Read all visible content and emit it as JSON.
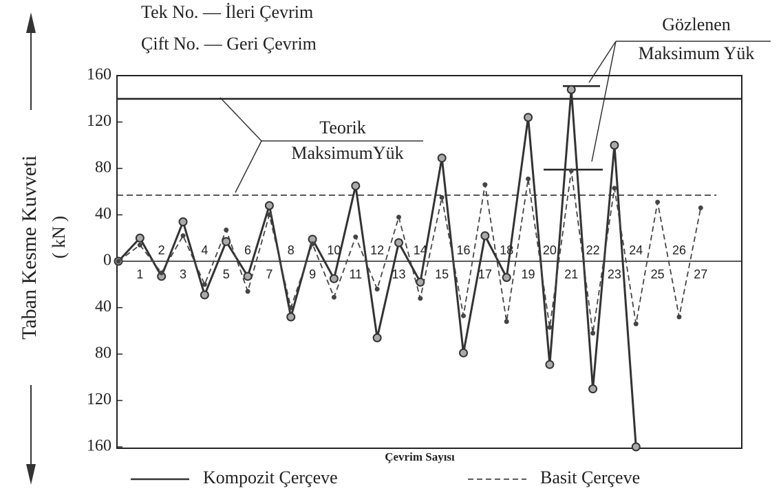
{
  "chart_data": {
    "type": "line",
    "legend_notes": [
      "Tek No. — İleri Çevrim",
      "Çift No. — Geri Çevrim"
    ],
    "xlabel": "Çevrim Sayısı",
    "ylabel": "Taban Kesme Kuvveti",
    "yunit": "( kN )",
    "x": [
      0,
      1,
      2,
      3,
      4,
      5,
      6,
      7,
      8,
      9,
      10,
      11,
      12,
      13,
      14,
      15,
      16,
      17,
      18,
      19,
      20,
      21,
      22,
      23,
      24,
      25,
      26,
      27
    ],
    "xlim": [
      0,
      29
    ],
    "xticks": [
      1,
      2,
      3,
      4,
      5,
      6,
      7,
      8,
      9,
      10,
      11,
      12,
      13,
      14,
      15,
      16,
      17,
      18,
      19,
      20,
      21,
      22,
      23,
      24,
      25,
      26,
      27
    ],
    "ylim": [
      -160,
      160
    ],
    "yticks": [
      {
        "value": 160,
        "label": "160"
      },
      {
        "value": 120,
        "label": "120"
      },
      {
        "value": 80,
        "label": "80"
      },
      {
        "value": 40,
        "label": "40"
      },
      0,
      {
        "value": -40,
        "label": "40"
      },
      {
        "value": -80,
        "label": "80"
      },
      {
        "value": -120,
        "label": "120"
      },
      {
        "value": -160,
        "label": "160"
      }
    ],
    "series": [
      {
        "name": "Kompozit Çerçeve",
        "color": "#333333",
        "style": "solid",
        "values": [
          0,
          20,
          -13,
          34,
          -29,
          17,
          -13,
          48,
          -48,
          19,
          -15,
          65,
          -66,
          16,
          -18,
          89,
          -79,
          22,
          -14,
          124,
          -89,
          148,
          -110,
          100,
          -160,
          null,
          null,
          null
        ]
      },
      {
        "name": "Basit Çerçeve",
        "color": "#444444",
        "style": "dashed",
        "values": [
          0,
          14,
          -10,
          22,
          -20,
          27,
          -26,
          40,
          -40,
          15,
          -31,
          21,
          -24,
          38,
          -32,
          55,
          -47,
          66,
          -52,
          71,
          -57,
          78,
          -62,
          63,
          -54,
          51,
          -48,
          46
        ]
      }
    ],
    "reference_lines": [
      {
        "value": 140,
        "style": "solid"
      },
      {
        "value": 57,
        "style": "dashed"
      }
    ],
    "observed_max": [
      151,
      79
    ],
    "annotations": [
      {
        "lines": [
          "Teorik",
          "MaksimumYük"
        ]
      },
      {
        "lines": [
          "Gözlenen",
          "Maksimum Yük"
        ]
      }
    ]
  }
}
